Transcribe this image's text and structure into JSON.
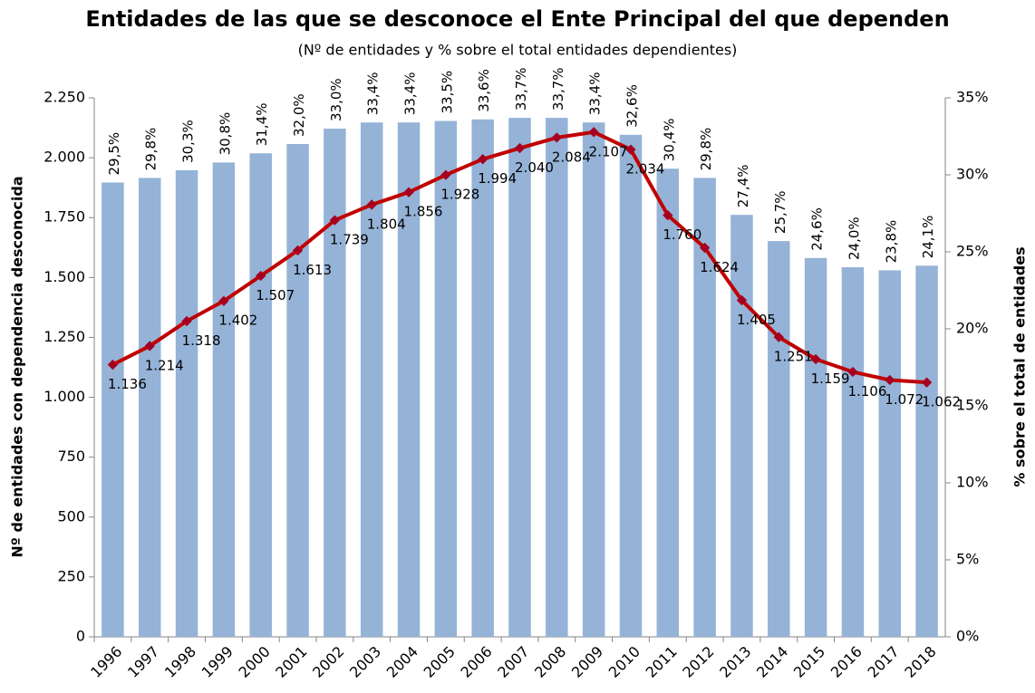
{
  "chart_data": {
    "type": "bar-line",
    "title": "Entidades de las que se desconoce el Ente Principal del que dependen",
    "subtitle": "(Nº de entidades y % sobre el total entidades dependientes)",
    "y_label": "Nº de entidades con dependencia desconocida",
    "y2_label": "% sobre el total de entidades",
    "categories": [
      "1996",
      "1997",
      "1998",
      "1999",
      "2000",
      "2001",
      "2002",
      "2003",
      "2004",
      "2005",
      "2006",
      "2007",
      "2008",
      "2009",
      "2010",
      "2011",
      "2012",
      "2013",
      "2014",
      "2015",
      "2016",
      "2017",
      "2018"
    ],
    "series": [
      {
        "type": "bar",
        "axis": "y2",
        "color": "#95b3d7",
        "values": [
          29.5,
          29.8,
          30.3,
          30.8,
          31.4,
          32.0,
          33.0,
          33.4,
          33.4,
          33.5,
          33.6,
          33.7,
          33.7,
          33.4,
          32.6,
          30.4,
          29.8,
          27.4,
          25.7,
          24.6,
          24.0,
          23.8,
          24.1
        ],
        "value_labels": [
          "29,5%",
          "29,8%",
          "30,3%",
          "30,8%",
          "31,4%",
          "32,0%",
          "33,0%",
          "33,4%",
          "33,4%",
          "33,5%",
          "33,6%",
          "33,7%",
          "33,7%",
          "33,4%",
          "32,6%",
          "30,4%",
          "29,8%",
          "27,4%",
          "25,7%",
          "24,6%",
          "24,0%",
          "23,8%",
          "24,1%"
        ]
      },
      {
        "type": "line",
        "axis": "y",
        "color": "#c00000",
        "marker_color": "#a50021",
        "values": [
          1136,
          1214,
          1318,
          1402,
          1507,
          1613,
          1739,
          1804,
          1856,
          1928,
          1994,
          2040,
          2084,
          2107,
          2034,
          1760,
          1624,
          1405,
          1251,
          1159,
          1106,
          1072,
          1062
        ],
        "value_labels": [
          "1.136",
          "1.214",
          "1.318",
          "1.402",
          "1.507",
          "1.613",
          "1.739",
          "1.804",
          "1.856",
          "1.928",
          "1.994",
          "2.040",
          "2.084",
          "2.107",
          "2.034",
          "1.760",
          "1.624",
          "1.405",
          "1.251",
          "1.159",
          "1.106",
          "1.072",
          "1.062"
        ]
      }
    ],
    "ylim": [
      0,
      2250
    ],
    "yticks": [
      0,
      250,
      500,
      750,
      {
        "value": 1000,
        "label": "1.000"
      },
      {
        "value": 1250,
        "label": "1.250"
      },
      {
        "value": 1500,
        "label": "1.500"
      },
      {
        "value": 1750,
        "label": "1.750"
      },
      {
        "value": 2000,
        "label": "2.000"
      },
      {
        "value": 2250,
        "label": "2.250"
      }
    ],
    "y2lim": [
      0,
      35
    ],
    "y2ticks": [
      {
        "value": 0,
        "label": "0%"
      },
      {
        "value": 5,
        "label": "5%"
      },
      {
        "value": 10,
        "label": "10%"
      },
      {
        "value": 15,
        "label": "15%"
      },
      {
        "value": 20,
        "label": "20%"
      },
      {
        "value": 25,
        "label": "25%"
      },
      {
        "value": 30,
        "label": "30%"
      },
      {
        "value": 35,
        "label": "35%"
      }
    ]
  }
}
